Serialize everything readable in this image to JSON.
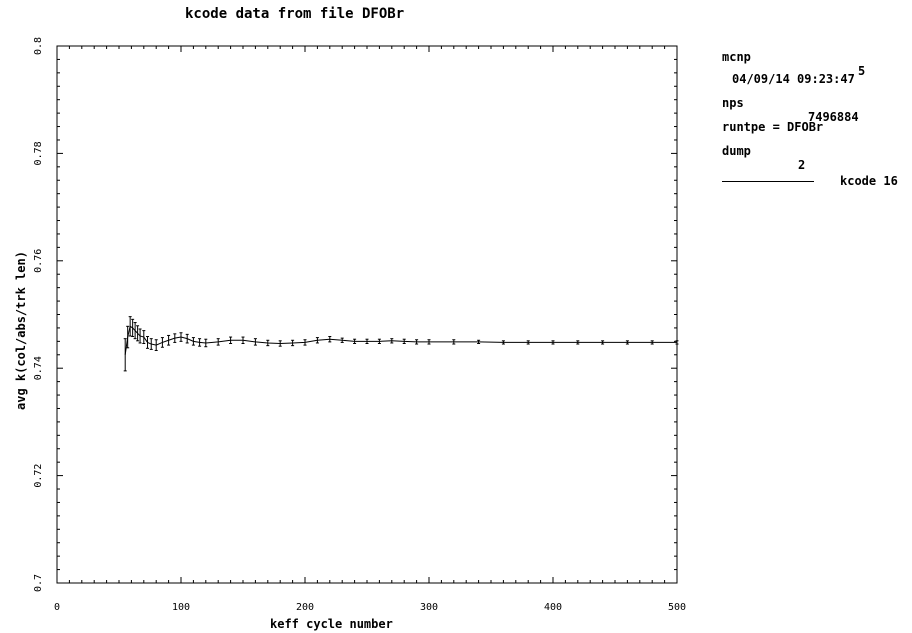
{
  "chart_data": {
    "type": "line",
    "title": "kcode data from file DFOBr",
    "xlabel": "keff cycle number",
    "ylabel": "avg k(col/abs/trk len)",
    "xlim": [
      0,
      500
    ],
    "ylim": [
      0.7,
      0.8
    ],
    "x_ticks": [
      "0",
      "100",
      "200",
      "300",
      "400",
      "500"
    ],
    "y_ticks": [
      "0.7",
      "0.72",
      "0.74",
      "0.76",
      "0.78",
      "0.8"
    ],
    "grid": false,
    "series": [
      {
        "name": "kcode 16",
        "x": [
          55,
          57,
          59,
          61,
          63,
          65,
          67,
          70,
          73,
          76,
          80,
          85,
          90,
          95,
          100,
          105,
          110,
          115,
          120,
          130,
          140,
          150,
          160,
          170,
          180,
          190,
          200,
          210,
          220,
          230,
          240,
          250,
          260,
          270,
          280,
          290,
          300,
          320,
          340,
          360,
          380,
          400,
          420,
          440,
          460,
          480,
          500
        ],
        "y": [
          0.7425,
          0.7458,
          0.7478,
          0.7475,
          0.747,
          0.7465,
          0.746,
          0.7458,
          0.7448,
          0.7445,
          0.7443,
          0.7448,
          0.7452,
          0.7456,
          0.7458,
          0.7455,
          0.745,
          0.7448,
          0.7447,
          0.7449,
          0.7452,
          0.7452,
          0.7449,
          0.7447,
          0.7446,
          0.7447,
          0.7448,
          0.7452,
          0.7454,
          0.7452,
          0.745,
          0.745,
          0.745,
          0.7451,
          0.745,
          0.7449,
          0.7449,
          0.7449,
          0.7449,
          0.7448,
          0.7448,
          0.7448,
          0.7448,
          0.7448,
          0.7448,
          0.7448,
          0.7448
        ],
        "err": [
          0.003,
          0.002,
          0.0018,
          0.0016,
          0.0015,
          0.0014,
          0.0013,
          0.0012,
          0.0011,
          0.001,
          0.001,
          0.0009,
          0.0009,
          0.0008,
          0.0008,
          0.0008,
          0.0007,
          0.0007,
          0.0007,
          0.0006,
          0.0006,
          0.0006,
          0.0006,
          0.0005,
          0.0005,
          0.0005,
          0.0005,
          0.0005,
          0.0005,
          0.0004,
          0.0004,
          0.0004,
          0.0004,
          0.0004,
          0.0004,
          0.0004,
          0.0004,
          0.0004,
          0.0003,
          0.0003,
          0.0003,
          0.0003,
          0.0003,
          0.0003,
          0.0003,
          0.0003,
          0.0003
        ]
      }
    ],
    "legend_position": "right"
  },
  "info": {
    "mcnp_label": "mcnp",
    "mcnp_version": "5",
    "datetime": "04/09/14 09:23:47",
    "nps_label": "nps",
    "nps_value": "7496884",
    "runtpe": "runtpe = DFOBr",
    "dump_label": "dump",
    "dump_value": "2",
    "legend_label": "kcode 16"
  }
}
